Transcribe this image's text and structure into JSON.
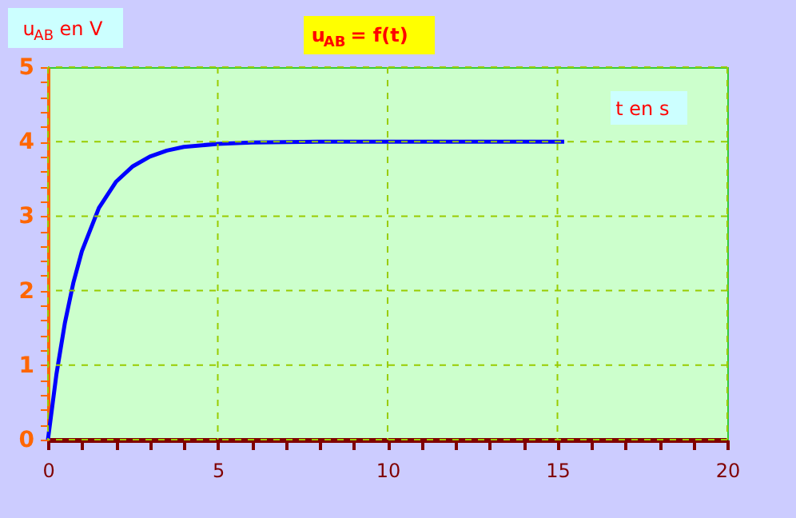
{
  "chart_data": {
    "type": "line",
    "title": "u$_{AB}$ = f(t)",
    "xlabel": "t en s",
    "ylabel": "u$_{AB}$ en V",
    "x": [
      0,
      0.25,
      0.5,
      0.75,
      1,
      1.5,
      2,
      2.5,
      3,
      3.5,
      4,
      5,
      6,
      8,
      15.2
    ],
    "series": [
      {
        "color": "#0000ff",
        "values": [
          0,
          0.88,
          1.57,
          2.11,
          2.53,
          3.11,
          3.46,
          3.67,
          3.8,
          3.88,
          3.93,
          3.97,
          3.99,
          4,
          4
        ]
      }
    ],
    "xlim": [
      0,
      20
    ],
    "ylim": [
      0,
      5
    ],
    "xticks": [
      0,
      {
        "value": 1,
        "label": null
      },
      {
        "value": 2,
        "label": null
      },
      {
        "value": 3,
        "label": null
      },
      {
        "value": 4,
        "label": null
      },
      5,
      {
        "value": 6,
        "label": null
      },
      {
        "value": 7,
        "label": null
      },
      {
        "value": 8,
        "label": null
      },
      {
        "value": 9,
        "label": null
      },
      10,
      {
        "value": 11,
        "label": null
      },
      {
        "value": 12,
        "label": null
      },
      {
        "value": 13,
        "label": null
      },
      {
        "value": 14,
        "label": null
      },
      15,
      {
        "value": 16,
        "label": null
      },
      {
        "value": 17,
        "label": null
      },
      {
        "value": 18,
        "label": null
      },
      {
        "value": 19,
        "label": null
      },
      20
    ],
    "yticks": [
      0,
      {
        "value": 0.2,
        "label": null
      },
      {
        "value": 0.4,
        "label": null
      },
      {
        "value": 0.6,
        "label": null
      },
      {
        "value": 0.8,
        "label": null
      },
      1,
      {
        "value": 1.2,
        "label": null
      },
      {
        "value": 1.4,
        "label": null
      },
      {
        "value": 1.6,
        "label": null
      },
      {
        "value": 1.8,
        "label": null
      },
      2,
      {
        "value": 2.2,
        "label": null
      },
      {
        "value": 2.4,
        "label": null
      },
      {
        "value": 2.6,
        "label": null
      },
      {
        "value": 2.8,
        "label": null
      },
      3,
      {
        "value": 3.2,
        "label": null
      },
      {
        "value": 3.4,
        "label": null
      },
      {
        "value": 3.6,
        "label": null
      },
      {
        "value": 3.8,
        "label": null
      },
      4,
      {
        "value": 4.2,
        "label": null
      },
      {
        "value": 4.4,
        "label": null
      },
      {
        "value": 4.6,
        "label": null
      },
      {
        "value": 4.8,
        "label": null
      },
      5
    ],
    "grid": true,
    "marker": "none",
    "line_style": "solid"
  }
}
